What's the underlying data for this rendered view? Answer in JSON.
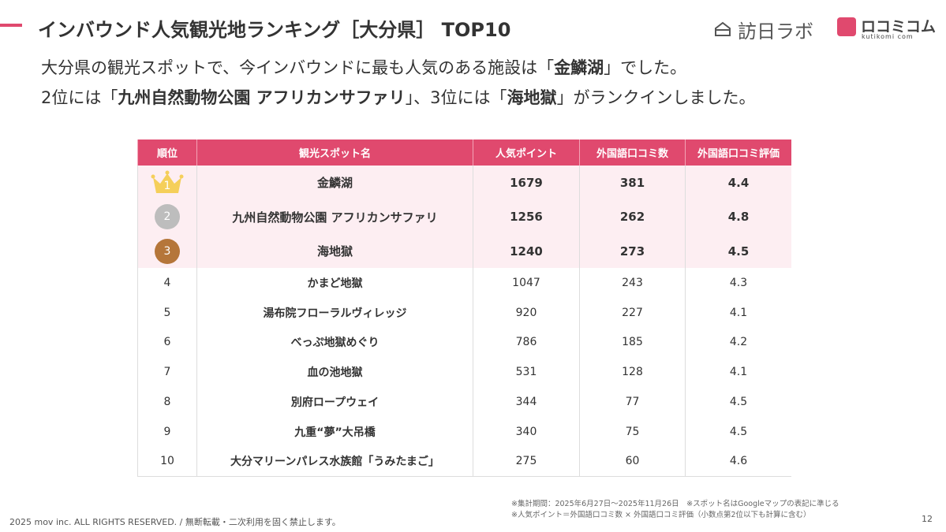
{
  "header": {
    "title": "インバウンド人気観光地ランキング［大分県］ TOP10",
    "logo_left": "訪日ラボ",
    "logo_right": "ロコミコム",
    "logo_right_sub": "kutikomi com"
  },
  "subtitle": [
    [
      "大分県の観光スポットで、今インバウンドに最も人気のある施設は「",
      "金鱗湖",
      "」でした。"
    ],
    [
      "2位には「",
      "九州自然動物公園 アフリカンサファリ",
      "」、3位には「",
      "海地獄",
      "」がランクインしました。"
    ]
  ],
  "table": {
    "columns": [
      "順位",
      "観光スポット名",
      "人気ポイント",
      "外国語口コミ数",
      "外国語口コミ評価"
    ],
    "rows": [
      [
        "1",
        "金鱗湖",
        "1679",
        "381",
        "4.4"
      ],
      [
        "2",
        "九州自然動物公園 アフリカンサファリ",
        "1256",
        "262",
        "4.8"
      ],
      [
        "3",
        "海地獄",
        "1240",
        "273",
        "4.5"
      ],
      [
        "4",
        "かまど地獄",
        "1047",
        "243",
        "4.3"
      ],
      [
        "5",
        "湯布院フローラルヴィレッジ",
        "920",
        "227",
        "4.1"
      ],
      [
        "6",
        "べっぷ地獄めぐり",
        "786",
        "185",
        "4.2"
      ],
      [
        "7",
        "血の池地獄",
        "531",
        "128",
        "4.1"
      ],
      [
        "8",
        "別府ロープウェイ",
        "344",
        "77",
        "4.5"
      ],
      [
        "9",
        "九重“夢”大吊橋",
        "340",
        "75",
        "4.5"
      ],
      [
        "10",
        "大分マリーンパレス水族館「うみたまご」",
        "275",
        "60",
        "4.6"
      ]
    ]
  },
  "footnotes": [
    "※集計期間：2025年6月27日〜2025年11月26日　※スポット名はGoogleマップの表記に準じる",
    "※人気ポイント＝外国語口コミ数 × 外国語口コミ評価（小数点第2位以下も計算に含む）"
  ],
  "footer": {
    "copyright": "2025 mov inc. ALL RIGHTS RESERVED. / 無断転載・二次利用を固く禁止します。",
    "page": "12"
  }
}
